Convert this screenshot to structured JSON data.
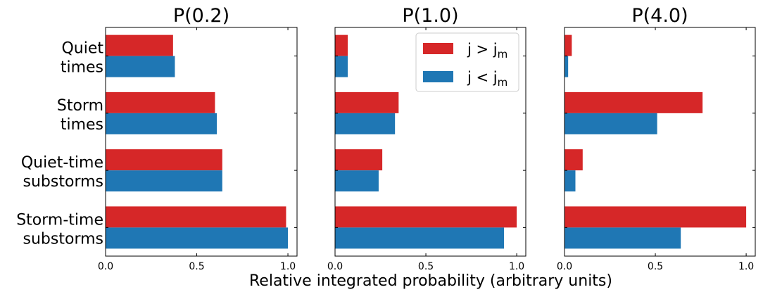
{
  "figure": {
    "xlabel": "Relative integrated probability (arbitrary units)"
  },
  "colors": {
    "high": "#d62728",
    "low": "#1f77b4"
  },
  "legend": {
    "placement": "top-right of middle panel",
    "entries": [
      {
        "key": "high",
        "base": "j > j",
        "sub": "m"
      },
      {
        "key": "low",
        "base": "j < j",
        "sub": "m"
      }
    ]
  },
  "chart_data": [
    {
      "type": "bar",
      "orientation": "horizontal",
      "title": "P(0.2)",
      "categories": [
        [
          "Quiet",
          "times"
        ],
        [
          "Storm",
          "times"
        ],
        [
          "Quiet-time",
          "substorms"
        ],
        [
          "Storm-time",
          "substorms"
        ]
      ],
      "series": [
        {
          "key": "high",
          "values": [
            0.37,
            0.6,
            0.64,
            0.99
          ]
        },
        {
          "key": "low",
          "values": [
            0.38,
            0.61,
            0.64,
            1.0
          ]
        }
      ],
      "xlim": [
        0,
        1.05
      ],
      "xticks": [
        "0.0",
        "0.5",
        "1.0"
      ]
    },
    {
      "type": "bar",
      "orientation": "horizontal",
      "title": "P(1.0)",
      "categories": [
        [
          "Quiet",
          "times"
        ],
        [
          "Storm",
          "times"
        ],
        [
          "Quiet-time",
          "substorms"
        ],
        [
          "Storm-time",
          "substorms"
        ]
      ],
      "series": [
        {
          "key": "high",
          "values": [
            0.07,
            0.35,
            0.26,
            1.0
          ]
        },
        {
          "key": "low",
          "values": [
            0.07,
            0.33,
            0.24,
            0.93
          ]
        }
      ],
      "xlim": [
        0,
        1.05
      ],
      "xticks": [
        "0.0",
        "0.5",
        "1.0"
      ]
    },
    {
      "type": "bar",
      "orientation": "horizontal",
      "title": "P(4.0)",
      "categories": [
        [
          "Quiet",
          "times"
        ],
        [
          "Storm",
          "times"
        ],
        [
          "Quiet-time",
          "substorms"
        ],
        [
          "Storm-time",
          "substorms"
        ]
      ],
      "series": [
        {
          "key": "high",
          "values": [
            0.04,
            0.76,
            0.1,
            1.0
          ]
        },
        {
          "key": "low",
          "values": [
            0.02,
            0.51,
            0.06,
            0.64
          ]
        }
      ],
      "xlim": [
        0,
        1.05
      ],
      "xticks": [
        "0.0",
        "0.5",
        "1.0"
      ]
    }
  ]
}
